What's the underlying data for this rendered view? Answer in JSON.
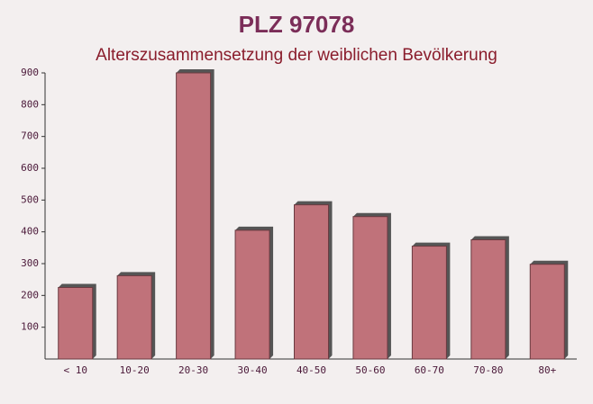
{
  "chart_data": {
    "type": "bar",
    "title": "PLZ 97078",
    "subtitle": "Alterszusammensetzung der weiblichen Bevölkerung",
    "categories": [
      "< 10",
      "10-20",
      "20-30",
      "30-40",
      "40-50",
      "50-60",
      "60-70",
      "70-80",
      "80+"
    ],
    "values": [
      225,
      262,
      900,
      405,
      485,
      448,
      355,
      375,
      298
    ],
    "color": "#c0727a",
    "ylim": [
      0,
      900
    ],
    "yticks": [
      100,
      200,
      300,
      400,
      500,
      600,
      700,
      800,
      900
    ]
  }
}
